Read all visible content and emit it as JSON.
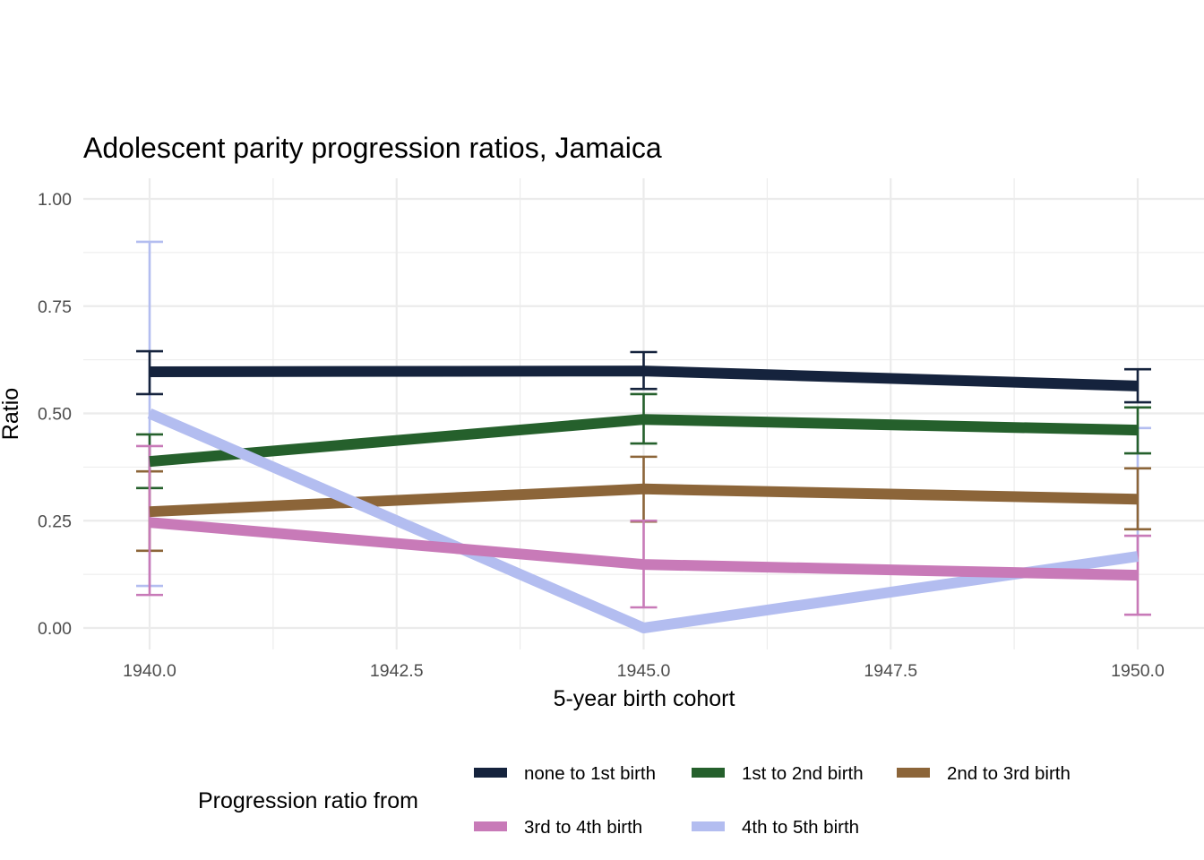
{
  "chart_data": {
    "type": "line",
    "title": "Adolescent parity progression ratios,  Jamaica",
    "xlabel": "5-year birth cohort",
    "ylabel": "Ratio",
    "xlim": [
      1939.6,
      1951.3
    ],
    "ylim": [
      -0.05,
      1.05
    ],
    "x_ticks": [
      1940.0,
      1942.5,
      1945.0,
      1947.5,
      1950.0
    ],
    "x_tick_labels": [
      "1940.0",
      "1942.5",
      "1945.0",
      "1947.5",
      "1950.0"
    ],
    "y_ticks": [
      0.0,
      0.25,
      0.5,
      0.75,
      1.0
    ],
    "y_tick_labels": [
      "0.00",
      "0.25",
      "0.50",
      "0.75",
      "1.00"
    ],
    "grid": true,
    "x": [
      1940,
      1945,
      1950
    ],
    "legend": {
      "title": "Progression ratio from",
      "placement": "bottom"
    },
    "series": [
      {
        "name": "none to 1st birth",
        "color": "#15233d",
        "values": [
          0.597,
          0.599,
          0.564
        ],
        "lower": [
          0.545,
          0.557,
          0.526
        ],
        "upper": [
          0.645,
          0.643,
          0.603
        ]
      },
      {
        "name": "1st to 2nd birth",
        "color": "#25602c",
        "values": [
          0.388,
          0.486,
          0.461
        ],
        "lower": [
          0.326,
          0.43,
          0.407
        ],
        "upper": [
          0.451,
          0.545,
          0.514
        ]
      },
      {
        "name": "2nd to 3rd birth",
        "color": "#8c6539",
        "values": [
          0.271,
          0.324,
          0.3
        ],
        "lower": [
          0.18,
          0.248,
          0.23
        ],
        "upper": [
          0.365,
          0.399,
          0.372
        ]
      },
      {
        "name": "3rd to 4th birth",
        "color": "#c87ab8",
        "values": [
          0.246,
          0.148,
          0.123
        ],
        "lower": [
          0.077,
          0.048,
          0.031
        ],
        "upper": [
          0.424,
          0.25,
          0.215
        ]
      },
      {
        "name": "4th to 5th birth",
        "color": "#b3bdf0",
        "values": [
          0.5,
          0.0,
          0.167
        ],
        "lower": [
          0.098,
          0.0,
          null
        ],
        "upper": [
          0.9,
          0.0,
          0.466
        ]
      }
    ]
  }
}
